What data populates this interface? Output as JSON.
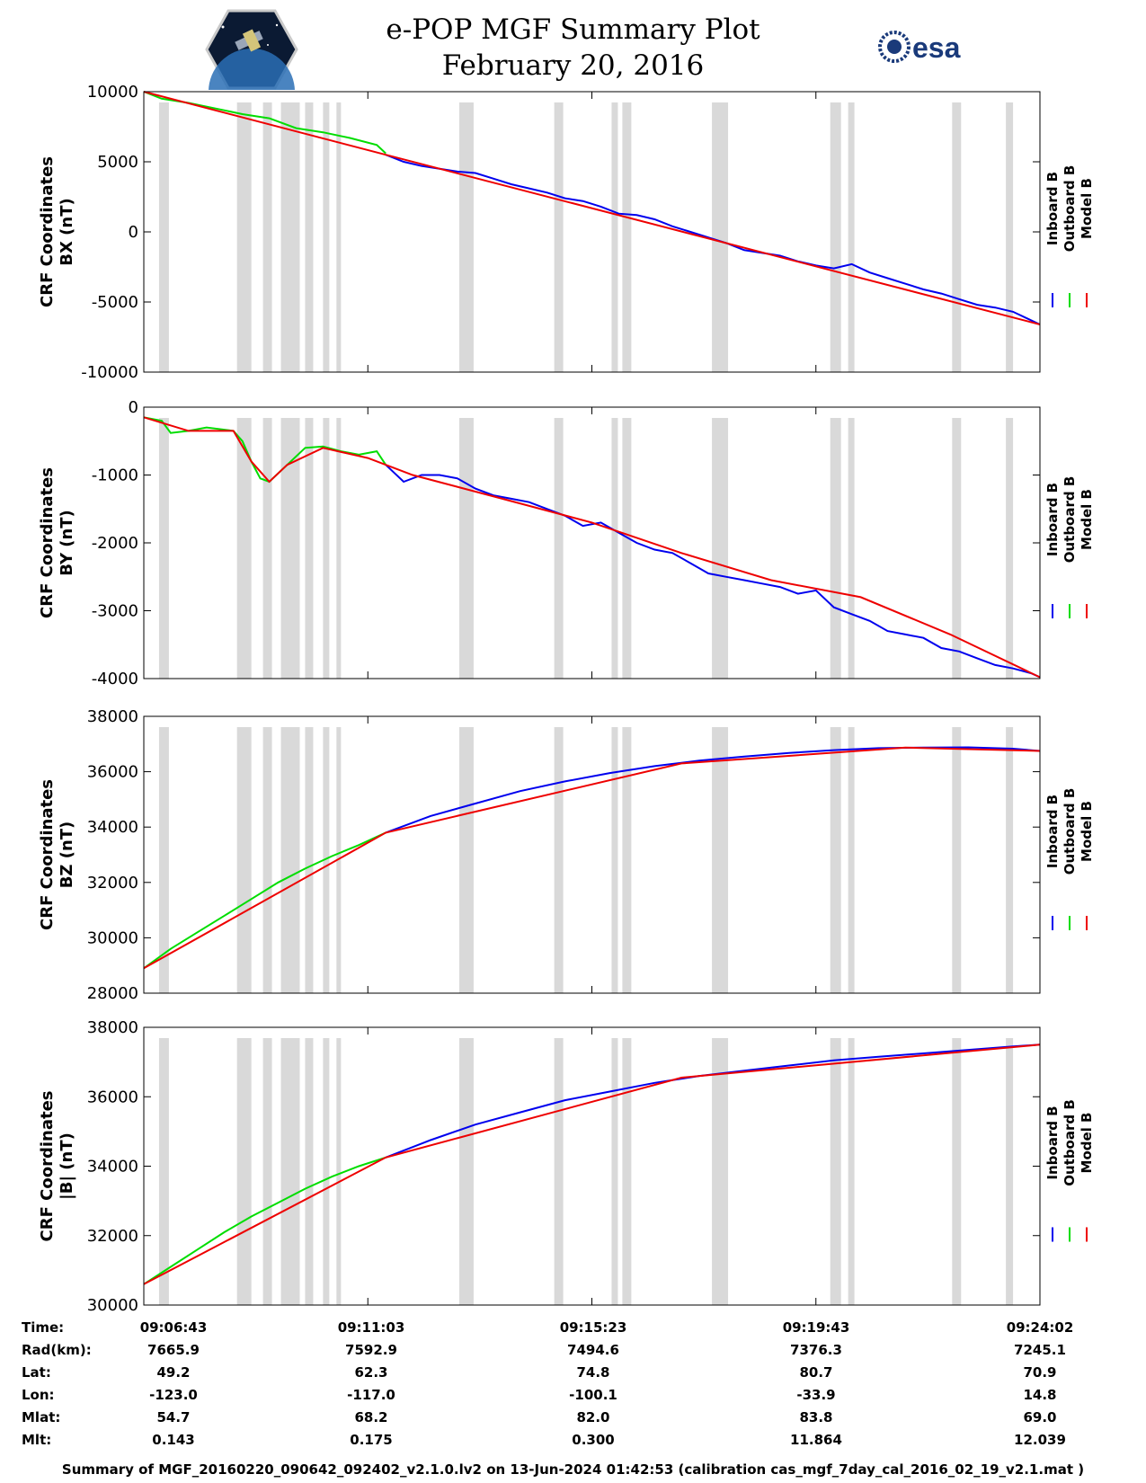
{
  "header": {
    "title_line1": "e-POP MGF Summary Plot",
    "title_line2": "February 20, 2016",
    "logo_left_icon": "cassiope-satellite-icon",
    "logo_right_icon": "esa-logo-icon",
    "logo_right_text": "esa"
  },
  "colors": {
    "inboard": "#0000ee",
    "outboard": "#00dd00",
    "model": "#ee0000",
    "gaps": "#d9d9d9"
  },
  "legend": [
    "Inboard B",
    "Outboard B",
    "Model B"
  ],
  "chart_data": [
    {
      "type": "line",
      "ylabel": [
        "CRF Coordinates",
        "BX (nT)"
      ],
      "ylim": [
        -10000,
        10000
      ],
      "yticks": [
        "10000",
        "5000",
        "0",
        "-5000",
        "-10000"
      ],
      "series": [
        {
          "name": "Inboard B",
          "x": [
            0.27,
            0.29,
            0.31,
            0.33,
            0.35,
            0.37,
            0.39,
            0.41,
            0.43,
            0.45,
            0.47,
            0.49,
            0.51,
            0.53,
            0.55,
            0.57,
            0.59,
            0.61,
            0.63,
            0.65,
            0.67,
            0.69,
            0.71,
            0.73,
            0.75,
            0.77,
            0.79,
            0.81,
            0.83,
            0.85,
            0.87,
            0.89,
            0.91,
            0.93,
            0.95,
            0.97,
            0.99,
            1.0
          ],
          "y": [
            5500,
            5000,
            4700,
            4500,
            4300,
            4200,
            3800,
            3400,
            3100,
            2800,
            2400,
            2200,
            1800,
            1300,
            1200,
            900,
            400,
            0,
            -400,
            -800,
            -1300,
            -1500,
            -1700,
            -2100,
            -2400,
            -2600,
            -2300,
            -2900,
            -3300,
            -3700,
            -4100,
            -4400,
            -4800,
            -5200,
            -5400,
            -5700,
            -6300,
            -6600
          ]
        },
        {
          "name": "Outboard B",
          "x": [
            0,
            0.02,
            0.05,
            0.08,
            0.11,
            0.14,
            0.17,
            0.2,
            0.23,
            0.26,
            0.27
          ],
          "y": [
            10000,
            9500,
            9200,
            8800,
            8400,
            8100,
            7400,
            7100,
            6700,
            6200,
            5600
          ]
        },
        {
          "name": "Model B",
          "x": [
            0,
            0.27,
            1.0
          ],
          "y": [
            10000,
            5500,
            -6600
          ]
        }
      ]
    },
    {
      "type": "line",
      "ylabel": [
        "CRF Coordinates",
        "BY (nT)"
      ],
      "ylim": [
        -4000,
        0
      ],
      "yticks": [
        "0",
        "-1000",
        "-2000",
        "-3000",
        "-4000"
      ],
      "series": [
        {
          "name": "Inboard B",
          "x": [
            0.27,
            0.29,
            0.31,
            0.33,
            0.35,
            0.37,
            0.39,
            0.41,
            0.43,
            0.45,
            0.47,
            0.49,
            0.51,
            0.53,
            0.55,
            0.57,
            0.59,
            0.61,
            0.63,
            0.65,
            0.67,
            0.69,
            0.71,
            0.73,
            0.75,
            0.77,
            0.79,
            0.81,
            0.83,
            0.85,
            0.87,
            0.89,
            0.91,
            0.93,
            0.95,
            0.97,
            0.99,
            1.0
          ],
          "y": [
            -850,
            -1100,
            -1000,
            -1000,
            -1050,
            -1200,
            -1300,
            -1350,
            -1400,
            -1500,
            -1600,
            -1750,
            -1700,
            -1850,
            -2000,
            -2100,
            -2150,
            -2300,
            -2450,
            -2500,
            -2550,
            -2600,
            -2650,
            -2750,
            -2700,
            -2950,
            -3050,
            -3150,
            -3300,
            -3350,
            -3400,
            -3550,
            -3600,
            -3700,
            -3800,
            -3850,
            -3920,
            -3980
          ]
        },
        {
          "name": "Outboard B",
          "x": [
            0,
            0.02,
            0.03,
            0.05,
            0.07,
            0.1,
            0.11,
            0.12,
            0.13,
            0.14,
            0.16,
            0.18,
            0.2,
            0.22,
            0.24,
            0.26,
            0.27
          ],
          "y": [
            -150,
            -200,
            -380,
            -350,
            -300,
            -350,
            -500,
            -800,
            -1050,
            -1100,
            -850,
            -600,
            -580,
            -650,
            -700,
            -650,
            -850
          ]
        },
        {
          "name": "Model B",
          "x": [
            0,
            0.05,
            0.1,
            0.12,
            0.14,
            0.16,
            0.2,
            0.25,
            0.3,
            0.4,
            0.5,
            0.6,
            0.7,
            0.8,
            0.9,
            1.0
          ],
          "y": [
            -150,
            -350,
            -350,
            -800,
            -1100,
            -850,
            -600,
            -750,
            -1000,
            -1350,
            -1700,
            -2150,
            -2550,
            -2800,
            -3350,
            -3980
          ]
        }
      ]
    },
    {
      "type": "line",
      "ylabel": [
        "CRF Coordinates",
        "BZ (nT)"
      ],
      "ylim": [
        28000,
        38000
      ],
      "yticks": [
        "38000",
        "36000",
        "34000",
        "32000",
        "30000",
        "28000"
      ],
      "series": [
        {
          "name": "Inboard B",
          "x": [
            0.27,
            0.32,
            0.37,
            0.42,
            0.47,
            0.52,
            0.57,
            0.62,
            0.67,
            0.72,
            0.77,
            0.82,
            0.87,
            0.92,
            0.97,
            1.0
          ],
          "y": [
            33800,
            34400,
            34850,
            35300,
            35650,
            35950,
            36200,
            36400,
            36550,
            36680,
            36780,
            36850,
            36870,
            36880,
            36830,
            36750
          ]
        },
        {
          "name": "Outboard B",
          "x": [
            0,
            0.03,
            0.06,
            0.09,
            0.12,
            0.15,
            0.18,
            0.21,
            0.24,
            0.27
          ],
          "y": [
            28900,
            29600,
            30200,
            30800,
            31400,
            32000,
            32500,
            32950,
            33350,
            33800
          ]
        },
        {
          "name": "Model B",
          "x": [
            0,
            0.27,
            0.6,
            0.85,
            1.0
          ],
          "y": [
            28900,
            33800,
            36300,
            36870,
            36750
          ]
        }
      ]
    },
    {
      "type": "line",
      "ylabel": [
        "CRF Coordinates",
        "|B| (nT)"
      ],
      "ylim": [
        30000,
        38000
      ],
      "yticks": [
        "38000",
        "36000",
        "34000",
        "32000",
        "30000"
      ],
      "series": [
        {
          "name": "Inboard B",
          "x": [
            0.27,
            0.32,
            0.37,
            0.42,
            0.47,
            0.52,
            0.57,
            0.62,
            0.67,
            0.72,
            0.77,
            0.82,
            0.87,
            0.92,
            0.97,
            1.0
          ],
          "y": [
            34250,
            34750,
            35200,
            35550,
            35900,
            36150,
            36400,
            36600,
            36750,
            36900,
            37050,
            37150,
            37250,
            37350,
            37450,
            37500
          ]
        },
        {
          "name": "Outboard B",
          "x": [
            0,
            0.03,
            0.06,
            0.09,
            0.12,
            0.15,
            0.18,
            0.21,
            0.24,
            0.27
          ],
          "y": [
            30600,
            31100,
            31600,
            32100,
            32550,
            32950,
            33350,
            33700,
            34000,
            34250
          ]
        },
        {
          "name": "Model B",
          "x": [
            0,
            0.27,
            0.6,
            1.0
          ],
          "y": [
            30600,
            34250,
            36550,
            37500
          ]
        }
      ]
    }
  ],
  "gap_bands": [
    [
      0.017,
      0.028
    ],
    [
      0.104,
      0.12
    ],
    [
      0.133,
      0.143
    ],
    [
      0.153,
      0.174
    ],
    [
      0.18,
      0.189
    ],
    [
      0.2,
      0.207
    ],
    [
      0.215,
      0.22
    ],
    [
      0.352,
      0.368
    ],
    [
      0.458,
      0.468
    ],
    [
      0.522,
      0.529
    ],
    [
      0.534,
      0.544
    ],
    [
      0.634,
      0.652
    ],
    [
      0.766,
      0.778
    ],
    [
      0.786,
      0.793
    ],
    [
      0.902,
      0.912
    ],
    [
      0.962,
      0.97
    ]
  ],
  "stats": {
    "labels": [
      "Time:",
      "Rad(km):",
      "Lat:",
      "Lon:",
      "Mlat:",
      "Mlt:"
    ],
    "columns": [
      [
        "09:06:43",
        "7665.9",
        "49.2",
        "-123.0",
        "54.7",
        "0.143"
      ],
      [
        "09:11:03",
        "7592.9",
        "62.3",
        "-117.0",
        "68.2",
        "0.175"
      ],
      [
        "09:15:23",
        "7494.6",
        "74.8",
        "-100.1",
        "82.0",
        "0.300"
      ],
      [
        "09:19:43",
        "7376.3",
        "80.7",
        "-33.9",
        "83.8",
        "11.864"
      ],
      [
        "09:24:02",
        "7245.1",
        "70.9",
        "14.8",
        "69.0",
        "12.039"
      ]
    ]
  },
  "footer": "Summary of MGF_20160220_090642_092402_v2.1.0.lv2 on 13-Jun-2024 01:42:53 (calibration cas_mgf_7day_cal_2016_02_19_v2.1.mat )"
}
